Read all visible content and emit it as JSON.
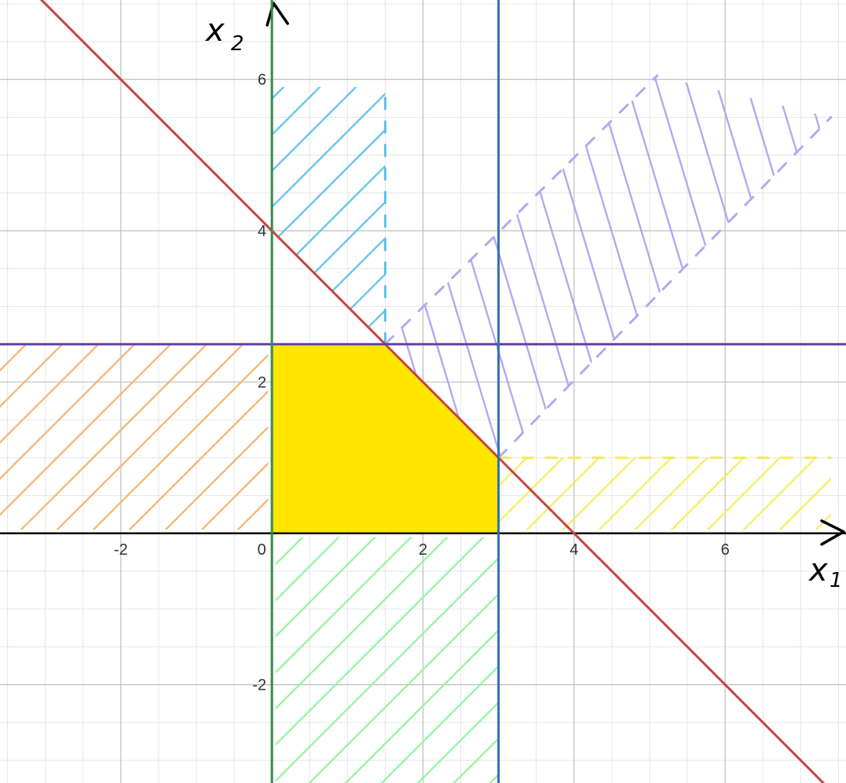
{
  "chart_data": {
    "type": "line",
    "title": "",
    "xlabel": "x",
    "xlabel_sub": "1",
    "ylabel": "x",
    "ylabel_sub": "2",
    "xlim": [
      -3.6,
      7.6
    ],
    "ylim": [
      -3.3,
      7.05
    ],
    "grid": true,
    "x_ticks": [
      {
        "value": -2,
        "label": "-2"
      },
      {
        "value": 0,
        "label": "0"
      },
      {
        "value": 2,
        "label": "2"
      },
      {
        "value": 4,
        "label": "4"
      },
      {
        "value": 6,
        "label": "6"
      }
    ],
    "y_ticks": [
      {
        "value": -2,
        "label": "-2"
      },
      {
        "value": 2,
        "label": "2"
      },
      {
        "value": 4,
        "label": "4"
      },
      {
        "value": 6,
        "label": "6"
      }
    ],
    "lines": [
      {
        "name": "x1 + x2 = 4",
        "points": [
          [
            -3.6,
            7.6
          ],
          [
            7.6,
            -3.6
          ]
        ],
        "color": "#c74440"
      },
      {
        "name": "x2 = 2.5",
        "points": [
          [
            -3.6,
            2.5
          ],
          [
            7.6,
            2.5
          ]
        ],
        "color": "#6042a6"
      },
      {
        "name": "x1 = 3",
        "points": [
          [
            3,
            -3.3
          ],
          [
            3,
            7.05
          ]
        ],
        "color": "#2d70b3"
      },
      {
        "name": "x1 = 0",
        "points": [
          [
            0,
            -3.3
          ],
          [
            0,
            7.05
          ]
        ],
        "color": "#388c46"
      }
    ],
    "dashed_boundaries": [
      {
        "points": [
          [
            1.5,
            2.5
          ],
          [
            1.5,
            5.9
          ]
        ],
        "color": "#5bc0eb"
      },
      {
        "points": [
          [
            1.5,
            2.5
          ],
          [
            5.1,
            6.05
          ]
        ],
        "color": "#b5a8ee"
      },
      {
        "points": [
          [
            3,
            1
          ],
          [
            7.4,
            5.5
          ]
        ],
        "color": "#b5a8ee"
      },
      {
        "points": [
          [
            3,
            1
          ],
          [
            7.4,
            1
          ]
        ],
        "color": "#f5ec5a"
      }
    ],
    "feasible_region": {
      "vertices": [
        [
          0,
          0
        ],
        [
          0,
          2.5
        ],
        [
          1.5,
          2.5
        ],
        [
          3,
          1
        ],
        [
          3,
          0
        ]
      ],
      "color": "#ffe600"
    },
    "hatched_regions": [
      {
        "color": "#5bc0eb",
        "polygon": [
          [
            0,
            5.9
          ],
          [
            1.5,
            5.9
          ],
          [
            1.5,
            2.5
          ],
          [
            0,
            4
          ]
        ]
      },
      {
        "color": "#f5b26b",
        "polygon": [
          [
            -3.6,
            2.5
          ],
          [
            -0.05,
            2.5
          ],
          [
            -0.05,
            0.05
          ],
          [
            -3.6,
            0.05
          ]
        ]
      },
      {
        "color": "#8ef59b",
        "polygon": [
          [
            0.05,
            -0.05
          ],
          [
            3,
            -0.05
          ],
          [
            3,
            -3.3
          ],
          [
            0.05,
            -3.3
          ]
        ]
      },
      {
        "color": "#ad9ff0",
        "polygon": [
          [
            1.5,
            2.5
          ],
          [
            5.1,
            6.05
          ],
          [
            7.4,
            5.5
          ],
          [
            3,
            1
          ]
        ]
      },
      {
        "color": "#f5ec5a",
        "polygon": [
          [
            3,
            1
          ],
          [
            7.4,
            1
          ],
          [
            7.4,
            0.05
          ],
          [
            3,
            0.05
          ]
        ]
      }
    ]
  }
}
